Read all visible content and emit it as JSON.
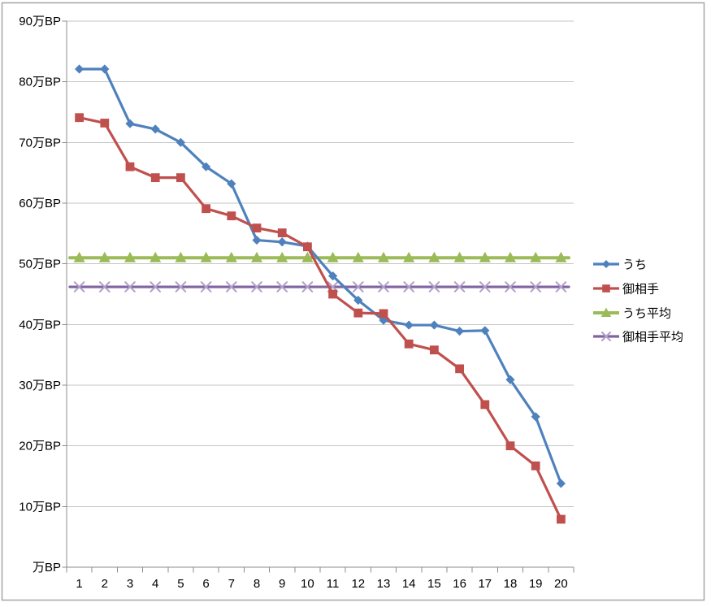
{
  "chart_data": {
    "type": "line",
    "title": "",
    "x_axis": {
      "categories": [
        "1",
        "2",
        "3",
        "4",
        "5",
        "6",
        "7",
        "8",
        "9",
        "10",
        "11",
        "12",
        "13",
        "14",
        "15",
        "16",
        "17",
        "18",
        "19",
        "20"
      ]
    },
    "y_axis": {
      "unit": "万BP",
      "min": 0,
      "max": 90,
      "tick_step": 10,
      "tick_labels": [
        "90万BP",
        "80万BP",
        "70万BP",
        "60万BP",
        "50万BP",
        "40万BP",
        "30万BP",
        "20万BP",
        "10万BP",
        "万BP"
      ],
      "gridlines": true
    },
    "legend_position": "right",
    "series": [
      {
        "name": "うち",
        "slug": "uchi",
        "color": "#4F81BD",
        "marker": "diamond",
        "values": [
          82.1,
          82.1,
          73.1,
          72.2,
          70.0,
          66.0,
          63.2,
          53.9,
          53.6,
          52.9,
          48.0,
          44.0,
          40.7,
          39.9,
          39.9,
          38.9,
          39.0,
          30.9,
          24.8,
          13.8
        ]
      },
      {
        "name": "御相手",
        "slug": "oaite",
        "color": "#C0504D",
        "marker": "square",
        "values": [
          74.1,
          73.2,
          66.0,
          64.2,
          64.2,
          59.1,
          57.9,
          55.9,
          55.1,
          52.8,
          45.0,
          41.9,
          41.8,
          36.8,
          35.8,
          32.7,
          26.8,
          20.0,
          16.7,
          7.9
        ]
      },
      {
        "name": "うち平均",
        "slug": "uchi-heikin",
        "color": "#9BBB59",
        "marker": "triangle",
        "constant": 51.0,
        "values": [
          51.0,
          51.0,
          51.0,
          51.0,
          51.0,
          51.0,
          51.0,
          51.0,
          51.0,
          51.0,
          51.0,
          51.0,
          51.0,
          51.0,
          51.0,
          51.0,
          51.0,
          51.0,
          51.0,
          51.0
        ]
      },
      {
        "name": "御相手平均",
        "slug": "oaite-heikin",
        "color": "#8064A2",
        "marker": "x",
        "marker_color": "#B1A0C7",
        "constant": 46.2,
        "values": [
          46.2,
          46.2,
          46.2,
          46.2,
          46.2,
          46.2,
          46.2,
          46.2,
          46.2,
          46.2,
          46.2,
          46.2,
          46.2,
          46.2,
          46.2,
          46.2,
          46.2,
          46.2,
          46.2,
          46.2
        ]
      }
    ],
    "colors": {
      "background": "#FFFFFF",
      "frame_border": "#A6A6A6",
      "gridline": "#C6C6C6",
      "axis": "#8C8C8C",
      "text": "#000000"
    }
  }
}
